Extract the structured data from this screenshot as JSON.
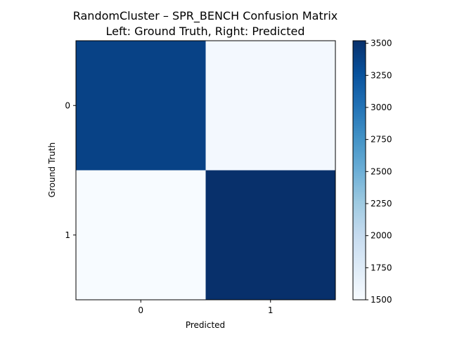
{
  "chart_data": {
    "type": "heatmap",
    "title_lines": [
      "RandomCluster – SPR_BENCH Confusion Matrix",
      "Left: Ground Truth, Right: Predicted"
    ],
    "xlabel": "Predicted",
    "ylabel": "Ground Truth",
    "x_categories": [
      "0",
      "1"
    ],
    "y_categories": [
      "0",
      "1"
    ],
    "values": [
      [
        3380,
        1540
      ],
      [
        1500,
        3520
      ]
    ],
    "colormap": "Blues",
    "color_range": [
      1500,
      3520
    ],
    "colorbar_ticks": [
      "1500",
      "1750",
      "2000",
      "2250",
      "2500",
      "2750",
      "3000",
      "3250",
      "3500"
    ]
  }
}
